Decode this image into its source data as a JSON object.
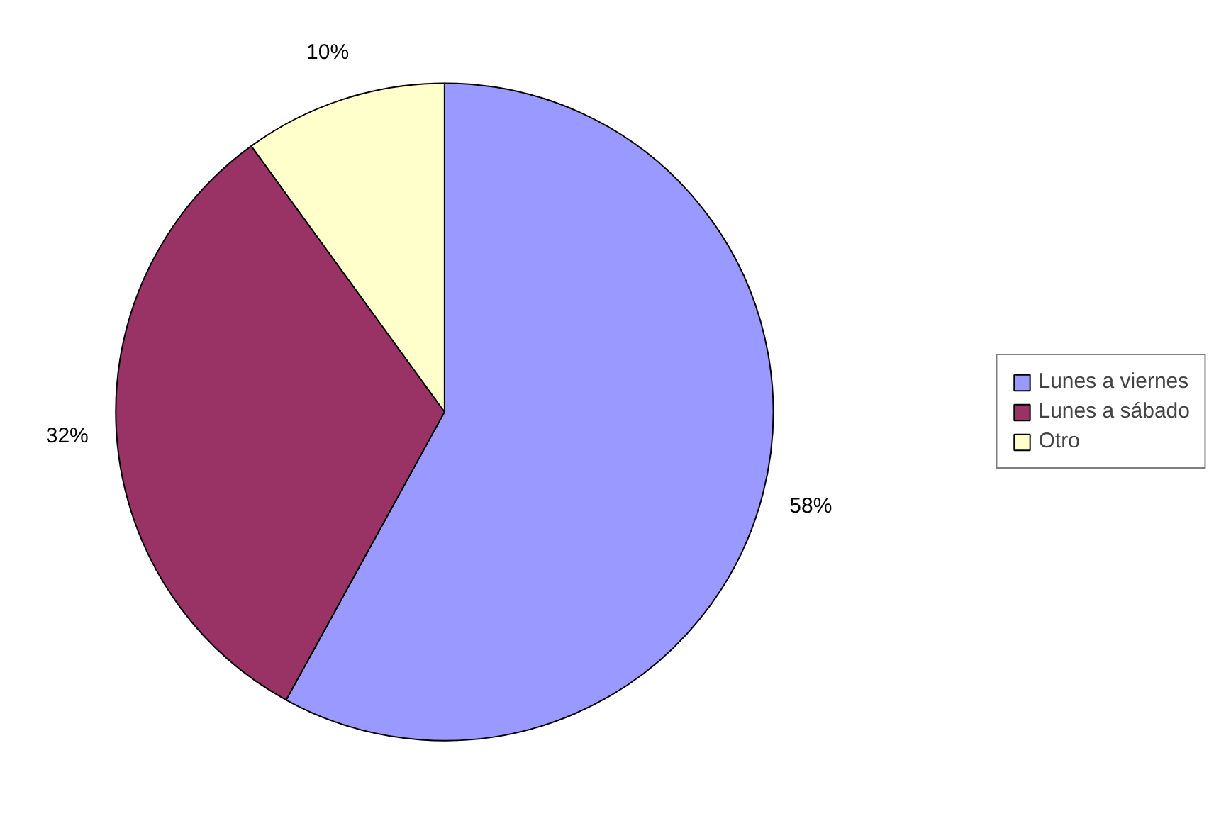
{
  "chart_data": {
    "type": "pie",
    "categories": [
      "Lunes a viernes",
      "Lunes a sábado",
      "Otro"
    ],
    "values": [
      58,
      32,
      10
    ],
    "colors": [
      "#9999ff",
      "#993366",
      "#ffffcc"
    ],
    "value_labels": [
      "58%",
      "32%",
      "10%"
    ],
    "legend": "right"
  }
}
